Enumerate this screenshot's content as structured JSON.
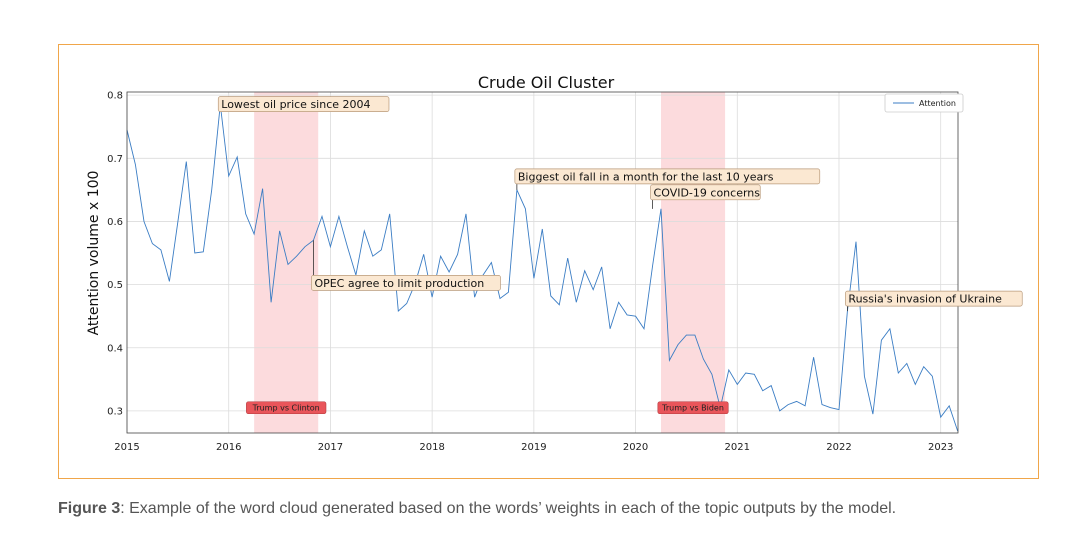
{
  "caption": {
    "label": "Figure 3",
    "text": ": Example of the word cloud generated based on the words’ weights in each of the topic outputs by the model."
  },
  "chart_data": {
    "type": "line",
    "title": "Crude Oil Cluster",
    "xlabel": "",
    "ylabel": "Attention volume x 100",
    "xlim": [
      2015.0,
      2023.17
    ],
    "ylim": [
      0.265,
      0.805
    ],
    "x_ticks": [
      "2015",
      "2016",
      "2017",
      "2018",
      "2019",
      "2020",
      "2021",
      "2022",
      "2023"
    ],
    "y_ticks": [
      "0.3",
      "0.4",
      "0.5",
      "0.6",
      "0.7",
      "0.8"
    ],
    "grid": true,
    "legend_position": "top-right",
    "color": "#3b7dc4",
    "series": [
      {
        "name": "Attention",
        "x": [
          2015.0,
          2015.083,
          2015.167,
          2015.25,
          2015.333,
          2015.417,
          2015.5,
          2015.583,
          2015.667,
          2015.75,
          2015.833,
          2015.917,
          2016.0,
          2016.083,
          2016.167,
          2016.25,
          2016.333,
          2016.417,
          2016.5,
          2016.583,
          2016.667,
          2016.75,
          2016.833,
          2016.917,
          2017.0,
          2017.083,
          2017.167,
          2017.25,
          2017.333,
          2017.417,
          2017.5,
          2017.583,
          2017.667,
          2017.75,
          2017.833,
          2017.917,
          2018.0,
          2018.083,
          2018.167,
          2018.25,
          2018.333,
          2018.417,
          2018.5,
          2018.583,
          2018.667,
          2018.75,
          2018.833,
          2018.917,
          2019.0,
          2019.083,
          2019.167,
          2019.25,
          2019.333,
          2019.417,
          2019.5,
          2019.583,
          2019.667,
          2019.75,
          2019.833,
          2019.917,
          2020.0,
          2020.083,
          2020.167,
          2020.25,
          2020.333,
          2020.417,
          2020.5,
          2020.583,
          2020.667,
          2020.75,
          2020.833,
          2020.917,
          2021.0,
          2021.083,
          2021.167,
          2021.25,
          2021.333,
          2021.417,
          2021.5,
          2021.583,
          2021.667,
          2021.75,
          2021.833,
          2021.917,
          2022.0,
          2022.083,
          2022.167,
          2022.25,
          2022.333,
          2022.417,
          2022.5,
          2022.583,
          2022.667,
          2022.75,
          2022.833,
          2022.917,
          2023.0,
          2023.083,
          2023.167
        ],
        "values": [
          0.745,
          0.69,
          0.6,
          0.565,
          0.555,
          0.505,
          0.6,
          0.695,
          0.55,
          0.552,
          0.65,
          0.785,
          0.672,
          0.702,
          0.612,
          0.58,
          0.652,
          0.472,
          0.585,
          0.532,
          0.545,
          0.56,
          0.57,
          0.608,
          0.56,
          0.608,
          0.56,
          0.515,
          0.585,
          0.545,
          0.555,
          0.612,
          0.458,
          0.47,
          0.502,
          0.548,
          0.48,
          0.545,
          0.52,
          0.548,
          0.612,
          0.48,
          0.515,
          0.535,
          0.478,
          0.488,
          0.65,
          0.62,
          0.51,
          0.588,
          0.482,
          0.468,
          0.542,
          0.472,
          0.522,
          0.492,
          0.528,
          0.43,
          0.472,
          0.452,
          0.45,
          0.43,
          0.53,
          0.62,
          0.38,
          0.405,
          0.42,
          0.42,
          0.382,
          0.358,
          0.305,
          0.365,
          0.342,
          0.36,
          0.358,
          0.332,
          0.34,
          0.3,
          0.31,
          0.315,
          0.308,
          0.385,
          0.31,
          0.305,
          0.302,
          0.458,
          0.568,
          0.355,
          0.295,
          0.412,
          0.43,
          0.36,
          0.375,
          0.342,
          0.37,
          0.355,
          0.29,
          0.308,
          0.268
        ]
      }
    ],
    "shaded_periods": [
      {
        "start": 2016.25,
        "end": 2016.88,
        "label": "Trump vs Clinton"
      },
      {
        "start": 2020.25,
        "end": 2020.88,
        "label": "Trump vs Biden"
      }
    ],
    "annotations": [
      {
        "text": "Lowest oil price since 2004",
        "x": 2015.917,
        "y": 0.785
      },
      {
        "text": "OPEC agree to limit production",
        "x": 2016.833,
        "y": 0.57
      },
      {
        "text": "Biggest oil fall in a month for the last 10 years",
        "x": 2018.833,
        "y": 0.65
      },
      {
        "text": "COVID-19 concerns",
        "x": 2020.167,
        "y": 0.62
      },
      {
        "text": "Russia's invasion of Ukraine",
        "x": 2022.083,
        "y": 0.458
      }
    ]
  }
}
